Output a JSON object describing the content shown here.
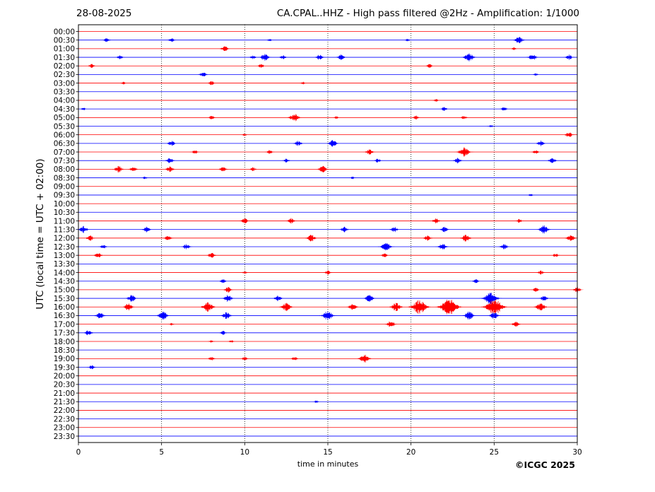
{
  "header": {
    "date": "28-08-2025",
    "title": "CA.CPAL..HHZ - High pass filtered @2Hz - Amplification: 1/1000"
  },
  "footer": {
    "copyright": "©ICGC 2025"
  },
  "chart_data": {
    "type": "line",
    "title": "CA.CPAL..HHZ - High pass filtered @2Hz - Amplification: 1/1000",
    "xlabel": "time in minutes",
    "ylabel": "UTC (local time = UTC + 02:00)",
    "xlim": [
      0,
      30
    ],
    "xticks": [
      0,
      5,
      10,
      15,
      20,
      25,
      30
    ],
    "xtick_labels": [
      "0",
      "5",
      "10",
      "15",
      "20",
      "25",
      "30"
    ],
    "vertical_gridlines_at": [
      5,
      10,
      15,
      20,
      25
    ],
    "grid": "vertical dotted",
    "trace_colors": [
      "#ff0000",
      "#0000ff"
    ],
    "rows": [
      "00:00",
      "00:30",
      "01:00",
      "01:30",
      "02:00",
      "02:30",
      "03:00",
      "03:30",
      "04:00",
      "04:30",
      "05:00",
      "05:30",
      "06:00",
      "06:30",
      "07:00",
      "07:30",
      "08:00",
      "08:30",
      "09:00",
      "09:30",
      "10:00",
      "10:30",
      "11:00",
      "11:30",
      "12:00",
      "12:30",
      "13:00",
      "13:30",
      "14:00",
      "14:30",
      "15:00",
      "15:30",
      "16:00",
      "16:30",
      "17:00",
      "17:30",
      "18:00",
      "18:30",
      "19:00",
      "19:30",
      "20:00",
      "20:30",
      "21:00",
      "21:30",
      "22:00",
      "22:30",
      "23:00",
      "23:30"
    ],
    "events": [
      {
        "row": "00:30",
        "t": 1.7,
        "amp": 3
      },
      {
        "row": "00:30",
        "t": 5.6,
        "amp": 3
      },
      {
        "row": "00:30",
        "t": 11.5,
        "amp": 2
      },
      {
        "row": "00:30",
        "t": 19.8,
        "amp": 2
      },
      {
        "row": "00:30",
        "t": 26.5,
        "amp": 5
      },
      {
        "row": "01:00",
        "t": 8.8,
        "amp": 4
      },
      {
        "row": "01:00",
        "t": 26.2,
        "amp": 2
      },
      {
        "row": "01:30",
        "t": 2.5,
        "amp": 3
      },
      {
        "row": "01:30",
        "t": 10.5,
        "amp": 3
      },
      {
        "row": "01:30",
        "t": 11.2,
        "amp": 5
      },
      {
        "row": "01:30",
        "t": 12.3,
        "amp": 3
      },
      {
        "row": "01:30",
        "t": 14.5,
        "amp": 4
      },
      {
        "row": "01:30",
        "t": 15.8,
        "amp": 4
      },
      {
        "row": "01:30",
        "t": 23.5,
        "amp": 6
      },
      {
        "row": "01:30",
        "t": 27.3,
        "amp": 5
      },
      {
        "row": "01:30",
        "t": 29.5,
        "amp": 4
      },
      {
        "row": "02:00",
        "t": 0.8,
        "amp": 3
      },
      {
        "row": "02:00",
        "t": 11,
        "amp": 3
      },
      {
        "row": "02:00",
        "t": 21.1,
        "amp": 3
      },
      {
        "row": "02:30",
        "t": 7.5,
        "amp": 4
      },
      {
        "row": "02:30",
        "t": 27.5,
        "amp": 2
      },
      {
        "row": "03:00",
        "t": 2.7,
        "amp": 2
      },
      {
        "row": "03:00",
        "t": 8,
        "amp": 3
      },
      {
        "row": "03:00",
        "t": 13.5,
        "amp": 2
      },
      {
        "row": "04:00",
        "t": 21.5,
        "amp": 2
      },
      {
        "row": "04:30",
        "t": 0.3,
        "amp": 2
      },
      {
        "row": "04:30",
        "t": 22,
        "amp": 3
      },
      {
        "row": "04:30",
        "t": 25.6,
        "amp": 3
      },
      {
        "row": "05:00",
        "t": 8,
        "amp": 3
      },
      {
        "row": "05:00",
        "t": 13,
        "amp": 6
      },
      {
        "row": "05:00",
        "t": 15.5,
        "amp": 2
      },
      {
        "row": "05:00",
        "t": 20.3,
        "amp": 3
      },
      {
        "row": "05:00",
        "t": 23.2,
        "amp": 3
      },
      {
        "row": "05:30",
        "t": 24.8,
        "amp": 2
      },
      {
        "row": "06:00",
        "t": 10,
        "amp": 2
      },
      {
        "row": "06:00",
        "t": 29.5,
        "amp": 4
      },
      {
        "row": "06:30",
        "t": 5.6,
        "amp": 4
      },
      {
        "row": "06:30",
        "t": 13.2,
        "amp": 4
      },
      {
        "row": "06:30",
        "t": 15.3,
        "amp": 5
      },
      {
        "row": "06:30",
        "t": 27.8,
        "amp": 4
      },
      {
        "row": "07:00",
        "t": 7,
        "amp": 3
      },
      {
        "row": "07:00",
        "t": 11.5,
        "amp": 3
      },
      {
        "row": "07:00",
        "t": 17.5,
        "amp": 4
      },
      {
        "row": "07:00",
        "t": 23.2,
        "amp": 7
      },
      {
        "row": "07:00",
        "t": 27.5,
        "amp": 3
      },
      {
        "row": "07:30",
        "t": 5.5,
        "amp": 4
      },
      {
        "row": "07:30",
        "t": 12.5,
        "amp": 3
      },
      {
        "row": "07:30",
        "t": 18,
        "amp": 3
      },
      {
        "row": "07:30",
        "t": 22.8,
        "amp": 4
      },
      {
        "row": "07:30",
        "t": 28.5,
        "amp": 4
      },
      {
        "row": "08:00",
        "t": 2.4,
        "amp": 5
      },
      {
        "row": "08:00",
        "t": 3.3,
        "amp": 4
      },
      {
        "row": "08:00",
        "t": 5.5,
        "amp": 4
      },
      {
        "row": "08:00",
        "t": 8.7,
        "amp": 4
      },
      {
        "row": "08:00",
        "t": 10.5,
        "amp": 3
      },
      {
        "row": "08:00",
        "t": 14.7,
        "amp": 5
      },
      {
        "row": "08:30",
        "t": 4,
        "amp": 2
      },
      {
        "row": "08:30",
        "t": 16.5,
        "amp": 2
      },
      {
        "row": "09:30",
        "t": 27.2,
        "amp": 2
      },
      {
        "row": "11:00",
        "t": 10,
        "amp": 4
      },
      {
        "row": "11:00",
        "t": 12.8,
        "amp": 4
      },
      {
        "row": "11:00",
        "t": 21.5,
        "amp": 4
      },
      {
        "row": "11:00",
        "t": 26.5,
        "amp": 3
      },
      {
        "row": "11:30",
        "t": 0.3,
        "amp": 5
      },
      {
        "row": "11:30",
        "t": 4.1,
        "amp": 4
      },
      {
        "row": "11:30",
        "t": 16,
        "amp": 4
      },
      {
        "row": "11:30",
        "t": 19,
        "amp": 4
      },
      {
        "row": "11:30",
        "t": 22,
        "amp": 4
      },
      {
        "row": "11:30",
        "t": 28,
        "amp": 6
      },
      {
        "row": "12:00",
        "t": 0.7,
        "amp": 4
      },
      {
        "row": "12:00",
        "t": 5.4,
        "amp": 4
      },
      {
        "row": "12:00",
        "t": 14,
        "amp": 5
      },
      {
        "row": "12:00",
        "t": 21,
        "amp": 4
      },
      {
        "row": "12:00",
        "t": 23.3,
        "amp": 5
      },
      {
        "row": "12:00",
        "t": 29.6,
        "amp": 5
      },
      {
        "row": "12:30",
        "t": 1.5,
        "amp": 3
      },
      {
        "row": "12:30",
        "t": 6.5,
        "amp": 4
      },
      {
        "row": "12:30",
        "t": 18.5,
        "amp": 6
      },
      {
        "row": "12:30",
        "t": 21.9,
        "amp": 5
      },
      {
        "row": "12:30",
        "t": 25.6,
        "amp": 4
      },
      {
        "row": "13:00",
        "t": 1.2,
        "amp": 4
      },
      {
        "row": "13:00",
        "t": 8,
        "amp": 4
      },
      {
        "row": "13:00",
        "t": 18.4,
        "amp": 3
      },
      {
        "row": "13:00",
        "t": 28.7,
        "amp": 3
      },
      {
        "row": "14:00",
        "t": 10,
        "amp": 2
      },
      {
        "row": "14:00",
        "t": 15,
        "amp": 3
      },
      {
        "row": "14:00",
        "t": 27.8,
        "amp": 3
      },
      {
        "row": "14:30",
        "t": 8.7,
        "amp": 3
      },
      {
        "row": "14:30",
        "t": 23.9,
        "amp": 3
      },
      {
        "row": "15:00",
        "t": 9,
        "amp": 4
      },
      {
        "row": "15:00",
        "t": 27.5,
        "amp": 3
      },
      {
        "row": "15:00",
        "t": 30,
        "amp": 4
      },
      {
        "row": "15:30",
        "t": 3.2,
        "amp": 5
      },
      {
        "row": "15:30",
        "t": 9,
        "amp": 5
      },
      {
        "row": "15:30",
        "t": 12,
        "amp": 4
      },
      {
        "row": "15:30",
        "t": 17.5,
        "amp": 5
      },
      {
        "row": "15:30",
        "t": 24.8,
        "amp": 9
      },
      {
        "row": "15:30",
        "t": 28,
        "amp": 4
      },
      {
        "row": "16:00",
        "t": 3,
        "amp": 5
      },
      {
        "row": "16:00",
        "t": 7.8,
        "amp": 7
      },
      {
        "row": "16:00",
        "t": 12.5,
        "amp": 6
      },
      {
        "row": "16:00",
        "t": 16.5,
        "amp": 5
      },
      {
        "row": "16:00",
        "t": 19.1,
        "amp": 6
      },
      {
        "row": "16:00",
        "t": 20.5,
        "amp": 10
      },
      {
        "row": "16:00",
        "t": 22.3,
        "amp": 12
      },
      {
        "row": "16:00",
        "t": 25,
        "amp": 12
      },
      {
        "row": "16:00",
        "t": 27.8,
        "amp": 6
      },
      {
        "row": "16:30",
        "t": 1.3,
        "amp": 5
      },
      {
        "row": "16:30",
        "t": 5.1,
        "amp": 6
      },
      {
        "row": "16:30",
        "t": 8.9,
        "amp": 5
      },
      {
        "row": "16:30",
        "t": 15,
        "amp": 7
      },
      {
        "row": "16:30",
        "t": 23.5,
        "amp": 6
      },
      {
        "row": "16:30",
        "t": 25,
        "amp": 5
      },
      {
        "row": "17:00",
        "t": 5.6,
        "amp": 2
      },
      {
        "row": "17:00",
        "t": 18.8,
        "amp": 5
      },
      {
        "row": "17:00",
        "t": 26.3,
        "amp": 4
      },
      {
        "row": "17:30",
        "t": 0.6,
        "amp": 4
      },
      {
        "row": "17:30",
        "t": 8.7,
        "amp": 3
      },
      {
        "row": "18:00",
        "t": 8,
        "amp": 2
      },
      {
        "row": "18:00",
        "t": 9.2,
        "amp": 2
      },
      {
        "row": "19:00",
        "t": 8,
        "amp": 3
      },
      {
        "row": "19:00",
        "t": 10,
        "amp": 3
      },
      {
        "row": "19:00",
        "t": 13,
        "amp": 3
      },
      {
        "row": "19:00",
        "t": 17.2,
        "amp": 6
      },
      {
        "row": "19:30",
        "t": 0.8,
        "amp": 3
      },
      {
        "row": "21:30",
        "t": 14.3,
        "amp": 2
      }
    ]
  }
}
